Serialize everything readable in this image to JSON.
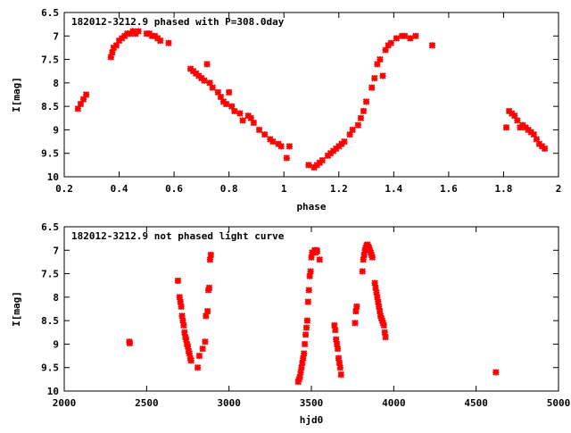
{
  "chart_data": [
    {
      "type": "scatter",
      "title": "182012-3212.9 phased with P=308.0day",
      "xlabel": "phase",
      "ylabel": "I[mag]",
      "xlim": [
        0.2,
        2.0
      ],
      "ylim": [
        6.5,
        10.0
      ],
      "y_inverted": true,
      "xticks": [
        "0.2",
        "0.4",
        "0.6",
        "0.8",
        "1",
        "1.2",
        "1.4",
        "1.6",
        "1.8",
        "2"
      ],
      "xtick_values": [
        0.2,
        0.4,
        0.6,
        0.8,
        1.0,
        1.2,
        1.4,
        1.6,
        1.8,
        2.0
      ],
      "yticks": [
        "6.5",
        "7",
        "7.5",
        "8",
        "8.5",
        "9",
        "9.5",
        "10"
      ],
      "ytick_values": [
        6.5,
        7.0,
        7.5,
        8.0,
        8.5,
        9.0,
        9.5,
        10.0
      ],
      "grid": false,
      "marker_color": "#ff0000",
      "series": [
        {
          "x": [
            0.25,
            0.26,
            0.27,
            0.28,
            0.37,
            0.375,
            0.38,
            0.39,
            0.4,
            0.41,
            0.42,
            0.43,
            0.44,
            0.45,
            0.46,
            0.47,
            0.5,
            0.51,
            0.52,
            0.53,
            0.54,
            0.55,
            0.58,
            0.66,
            0.67,
            0.68,
            0.69,
            0.7,
            0.71,
            0.72,
            0.73,
            0.74,
            0.76,
            0.77,
            0.78,
            0.79,
            0.8,
            0.81,
            0.82,
            0.84,
            0.85,
            0.87,
            0.88,
            0.89,
            0.91,
            0.93,
            0.95,
            0.96,
            0.98,
            0.99,
            1.01,
            1.02,
            1.09,
            1.11,
            1.12,
            1.13,
            1.14,
            1.16,
            1.17,
            1.18,
            1.19,
            1.2,
            1.21,
            1.22,
            1.24,
            1.25,
            1.27,
            1.28,
            1.29,
            1.3,
            1.32,
            1.33,
            1.34,
            1.35,
            1.36,
            1.37,
            1.38,
            1.39,
            1.41,
            1.43,
            1.44,
            1.46,
            1.48,
            1.54,
            1.81,
            1.82,
            1.83,
            1.84,
            1.85,
            1.86,
            1.87,
            1.88,
            1.89,
            1.9,
            1.91,
            1.92,
            1.93,
            1.94,
            1.95
          ],
          "y": [
            8.55,
            8.45,
            8.35,
            8.25,
            7.45,
            7.35,
            7.25,
            7.2,
            7.1,
            7.05,
            7.0,
            6.95,
            6.95,
            6.9,
            6.95,
            6.9,
            6.95,
            6.95,
            7.0,
            7.0,
            7.05,
            7.1,
            7.15,
            7.7,
            7.75,
            7.8,
            7.85,
            7.9,
            7.95,
            7.6,
            8.0,
            8.1,
            8.2,
            8.3,
            8.4,
            8.45,
            8.2,
            8.5,
            8.6,
            8.65,
            8.8,
            8.7,
            8.75,
            8.85,
            9.0,
            9.1,
            9.2,
            9.25,
            9.3,
            9.35,
            9.6,
            9.35,
            9.75,
            9.8,
            9.75,
            9.7,
            9.65,
            9.55,
            9.5,
            9.45,
            9.4,
            9.35,
            9.3,
            9.25,
            9.1,
            9.0,
            8.9,
            8.75,
            8.6,
            8.4,
            8.1,
            7.9,
            7.6,
            7.5,
            7.85,
            7.3,
            7.2,
            7.15,
            7.05,
            7.0,
            7.0,
            7.05,
            7.0,
            7.2,
            8.95,
            8.6,
            8.65,
            8.7,
            8.8,
            8.95,
            8.9,
            8.95,
            9.0,
            9.05,
            9.1,
            9.2,
            9.3,
            9.35,
            9.4
          ]
        }
      ]
    },
    {
      "type": "scatter",
      "title": "182012-3212.9 not phased light curve",
      "xlabel": "hjd0",
      "ylabel": "I[mag]",
      "xlim": [
        2000,
        5000
      ],
      "ylim": [
        6.5,
        10.0
      ],
      "y_inverted": true,
      "xticks": [
        "2000",
        "2500",
        "3000",
        "3500",
        "4000",
        "4500",
        "5000"
      ],
      "xtick_values": [
        2000,
        2500,
        3000,
        3500,
        4000,
        4500,
        5000
      ],
      "yticks": [
        "6.5",
        "7",
        "7.5",
        "8",
        "8.5",
        "9",
        "9.5",
        "10"
      ],
      "ytick_values": [
        6.5,
        7.0,
        7.5,
        8.0,
        8.5,
        9.0,
        9.5,
        10.0
      ],
      "grid": false,
      "marker_color": "#ff0000",
      "series": [
        {
          "x": [
            2395,
            2398,
            2690,
            2700,
            2705,
            2710,
            2715,
            2720,
            2725,
            2730,
            2735,
            2740,
            2745,
            2750,
            2755,
            2760,
            2765,
            2770,
            2810,
            2820,
            2840,
            2855,
            2860,
            2870,
            2875,
            2880,
            2885,
            2890,
            3420,
            3425,
            3430,
            3435,
            3440,
            3445,
            3450,
            3455,
            3460,
            3465,
            3470,
            3475,
            3480,
            3485,
            3490,
            3495,
            3500,
            3505,
            3520,
            3525,
            3530,
            3535,
            3550,
            3640,
            3645,
            3650,
            3655,
            3660,
            3665,
            3670,
            3675,
            3680,
            3765,
            3770,
            3775,
            3810,
            3815,
            3820,
            3825,
            3830,
            3835,
            3840,
            3845,
            3850,
            3855,
            3860,
            3865,
            3870,
            3885,
            3890,
            3895,
            3900,
            3905,
            3910,
            3915,
            3920,
            3925,
            3930,
            3935,
            3940,
            3945,
            3950,
            4620
          ],
          "y": [
            8.95,
            8.98,
            7.65,
            8.0,
            8.1,
            8.2,
            8.4,
            8.5,
            8.6,
            8.75,
            8.85,
            8.9,
            9.0,
            9.05,
            9.15,
            9.2,
            9.3,
            9.35,
            9.5,
            9.25,
            9.1,
            8.95,
            8.4,
            8.3,
            7.85,
            7.8,
            7.2,
            7.1,
            9.8,
            9.75,
            9.7,
            9.6,
            9.5,
            9.4,
            9.3,
            9.2,
            9.0,
            8.8,
            8.65,
            8.5,
            8.1,
            7.85,
            7.55,
            7.45,
            7.15,
            7.05,
            7.0,
            7.05,
            7.0,
            7.02,
            7.2,
            8.6,
            8.7,
            8.9,
            9.0,
            9.1,
            9.3,
            9.4,
            9.5,
            9.65,
            8.55,
            8.3,
            8.2,
            7.45,
            7.2,
            7.1,
            7.0,
            6.95,
            6.9,
            6.88,
            6.92,
            6.95,
            7.0,
            7.05,
            7.1,
            7.15,
            7.7,
            7.8,
            7.9,
            8.0,
            8.1,
            8.2,
            8.3,
            8.4,
            8.45,
            8.5,
            8.55,
            8.6,
            8.75,
            8.85,
            9.6
          ]
        }
      ]
    }
  ]
}
